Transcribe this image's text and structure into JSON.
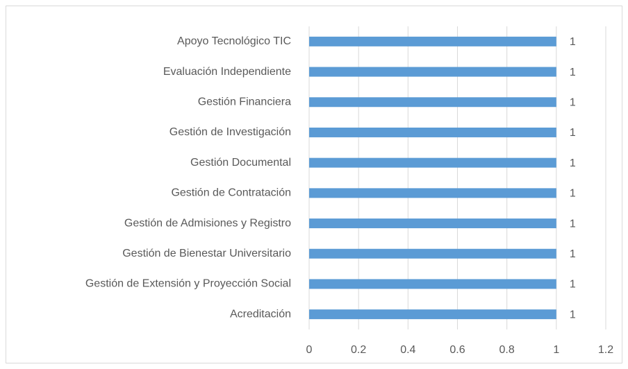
{
  "chart_data": {
    "type": "bar",
    "orientation": "horizontal",
    "categories": [
      "Apoyo Tecnológico TIC",
      "Evaluación Independiente",
      "Gestión Financiera",
      "Gestión de Investigación",
      "Gestión Documental",
      "Gestión de Contratación",
      "Gestión de Admisiones y Registro",
      "Gestión de Bienestar Universitario",
      "Gestión de Extensión y Proyección Social",
      "Acreditación"
    ],
    "values": [
      1,
      1,
      1,
      1,
      1,
      1,
      1,
      1,
      1,
      1
    ],
    "color": "#5b9bd5",
    "xlim": [
      0,
      1.2
    ],
    "xticks": [
      0,
      0.2,
      0.4,
      0.6,
      0.8,
      1,
      1.2
    ],
    "grid": true
  }
}
